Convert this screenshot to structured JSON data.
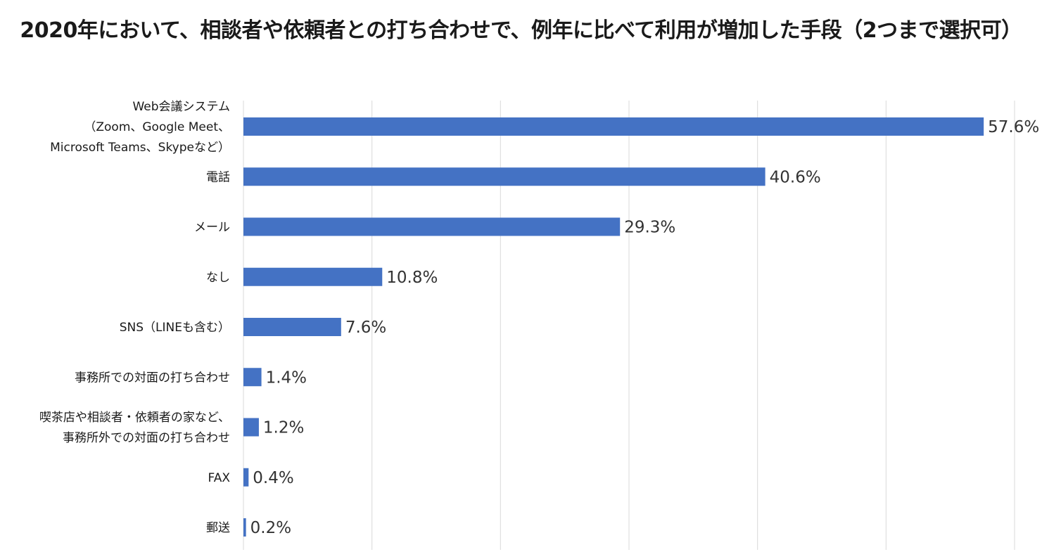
{
  "chart_data": {
    "type": "bar",
    "orientation": "horizontal",
    "title": "2020年において、相談者や依頼者との打ち合わせで、例年に比べて利用が増加した手段（2つまで選択可）",
    "categories": [
      [
        "Web会議システム",
        "（Zoom、Google Meet、",
        "Microsoft Teams、Skypeなど）"
      ],
      [
        "電話"
      ],
      [
        "メール"
      ],
      [
        "なし"
      ],
      [
        "SNS（LINEも含む）"
      ],
      [
        "事務所での対面の打ち合わせ"
      ],
      [
        "喫茶店や相談者・依頼者の家など、",
        "事務所外での対面の打ち合わせ"
      ],
      [
        "FAX"
      ],
      [
        "郵送"
      ]
    ],
    "values": [
      57.6,
      40.6,
      29.3,
      10.8,
      7.6,
      1.4,
      1.2,
      0.4,
      0.2
    ],
    "value_labels": [
      "57.6%",
      "40.6%",
      "29.3%",
      "10.8%",
      "7.6%",
      "1.4%",
      "1.2%",
      "0.4%",
      "0.2%"
    ],
    "xlim": [
      0,
      60
    ],
    "grid": true,
    "legend": "none",
    "colors": {
      "bar": "#4472C4",
      "grid": "#d9d9d9"
    }
  }
}
